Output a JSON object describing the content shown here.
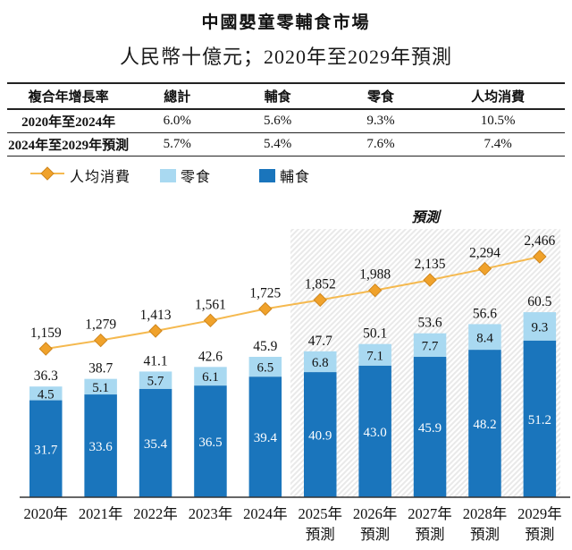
{
  "page": {
    "title": "中國嬰童零輔食市場",
    "subtitle": "人民幣十億元；2020年至2029年預測"
  },
  "cagr_table": {
    "headers": [
      "複合年增長率",
      "總計",
      "輔食",
      "零食",
      "人均消費"
    ],
    "rows": [
      {
        "label": "2020年至2024年",
        "values": [
          "6.0%",
          "5.6%",
          "9.3%",
          "10.5%"
        ]
      },
      {
        "label": "2024年至2029年預測",
        "values": [
          "5.7%",
          "5.4%",
          "7.6%",
          "7.4%"
        ]
      }
    ]
  },
  "legend": {
    "items": [
      {
        "label": "人均消費",
        "marker": "line-diamond",
        "color": "#f0a22b"
      },
      {
        "label": "零食",
        "marker": "square",
        "color": "#a9d9f1"
      },
      {
        "label": "輔食",
        "marker": "square",
        "color": "#1a75bc"
      }
    ]
  },
  "chart_data": {
    "type": "bar",
    "subtype": "stacked-bars-with-line-overlay",
    "title": "中國嬰童零輔食市場",
    "unit": "人民幣十億元",
    "forecast_label": "預測",
    "forecast_from_index": 5,
    "categories": [
      "2020年",
      "2021年",
      "2022年",
      "2023年",
      "2024年",
      "2025年預測",
      "2026年預測",
      "2027年預測",
      "2028年預測",
      "2029年預測"
    ],
    "axis_labels": [
      [
        "2020年"
      ],
      [
        "2021年"
      ],
      [
        "2022年"
      ],
      [
        "2023年"
      ],
      [
        "2024年"
      ],
      [
        "2025年",
        "預測"
      ],
      [
        "2026年",
        "預測"
      ],
      [
        "2027年",
        "預測"
      ],
      [
        "2028年",
        "預測"
      ],
      [
        "2029年",
        "預測"
      ]
    ],
    "series": [
      {
        "name": "輔食",
        "type": "bar",
        "stack_order": 0,
        "color": "#1a75bc",
        "values": [
          31.7,
          33.6,
          35.4,
          36.5,
          39.4,
          40.9,
          43.0,
          45.9,
          48.2,
          51.2
        ],
        "labels": [
          "31.7",
          "33.6",
          "35.4",
          "36.5",
          "39.4",
          "40.9",
          "43.0",
          "45.9",
          "48.2",
          "51.2"
        ]
      },
      {
        "name": "零食",
        "type": "bar",
        "stack_order": 1,
        "color": "#a9d9f1",
        "values": [
          4.5,
          5.1,
          5.7,
          6.1,
          6.5,
          6.8,
          7.1,
          7.7,
          8.4,
          9.3
        ],
        "labels": [
          "4.5",
          "5.1",
          "5.7",
          "6.1",
          "6.5",
          "6.8",
          "7.1",
          "7.7",
          "8.4",
          "9.3"
        ]
      },
      {
        "name": "人均消費",
        "type": "line",
        "color": "#f0a22b",
        "values": [
          1159,
          1279,
          1413,
          1561,
          1725,
          1852,
          1988,
          2135,
          2294,
          2466
        ],
        "labels": [
          "1,159",
          "1,279",
          "1,413",
          "1,561",
          "1,725",
          "1,852",
          "1,988",
          "2,135",
          "2,294",
          "2,466"
        ]
      }
    ],
    "totals": [
      36.3,
      38.7,
      41.1,
      42.6,
      45.9,
      47.7,
      50.1,
      53.6,
      56.6,
      60.5
    ],
    "total_labels": [
      "36.3",
      "38.7",
      "41.1",
      "42.6",
      "45.9",
      "47.7",
      "50.1",
      "53.6",
      "56.6",
      "60.5"
    ],
    "colors": {
      "staple_bar": "#1a75bc",
      "snack_bar": "#a9d9f1",
      "line": "#f5b94f",
      "diamond": "#f0a22b",
      "diamond_border": "#cf861d",
      "hatch": "#e9e9e9",
      "axis": "#333333",
      "bar_label_light": "#111111",
      "bar_label_dark": "#ffffff"
    },
    "legend_position": "top-left",
    "grid": false
  }
}
